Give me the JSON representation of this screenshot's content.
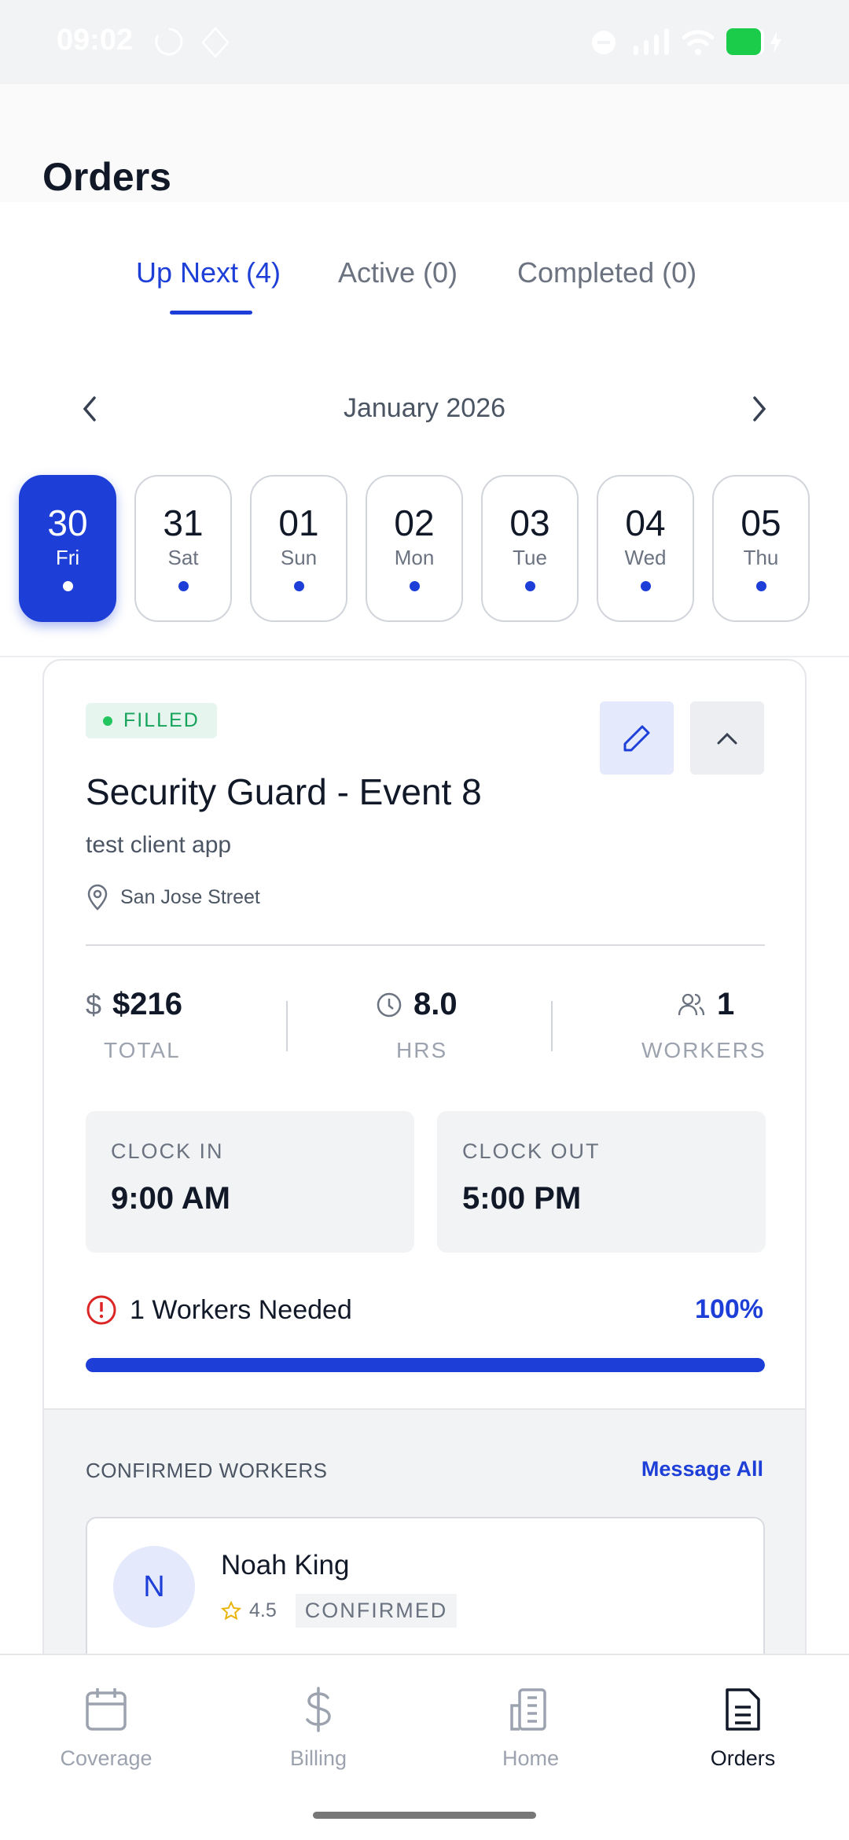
{
  "status_bar": {
    "time": "09:02",
    "battery_color": "#1bcc4b"
  },
  "header": {
    "title": "Orders"
  },
  "tabs": [
    {
      "label": "Up Next (4)",
      "active": true
    },
    {
      "label": "Active (0)"
    },
    {
      "label": "Completed (0)"
    }
  ],
  "calendar": {
    "month": "January 2026",
    "days": [
      {
        "d": "30",
        "w": "Fri",
        "selected": true
      },
      {
        "d": "31",
        "w": "Sat"
      },
      {
        "d": "01",
        "w": "Sun"
      },
      {
        "d": "02",
        "w": "Mon"
      },
      {
        "d": "03",
        "w": "Tue"
      },
      {
        "d": "04",
        "w": "Wed"
      },
      {
        "d": "05",
        "w": "Thu"
      }
    ]
  },
  "order": {
    "status": "FILLED",
    "title": "Security Guard - Event 8",
    "client": "test client app",
    "location": "San Jose Street",
    "total": "$216",
    "total_label": "TOTAL",
    "hours": "8.0",
    "hours_label": "HRS",
    "workers": "1",
    "workers_label": "WORKERS",
    "clock_in_label": "CLOCK IN",
    "clock_in": "9:00 AM",
    "clock_out_label": "CLOCK OUT",
    "clock_out": "5:00 PM",
    "needed": "1 Workers Needed",
    "fill_percent_label": "100%",
    "fill_percent": 100,
    "confirmed_label": "CONFIRMED WORKERS",
    "message_all": "Message All",
    "worker": {
      "initial": "N",
      "name": "Noah King",
      "rating": "4.5",
      "status": "CONFIRMED"
    }
  },
  "nav": [
    {
      "label": "Coverage",
      "icon": "calendar-icon"
    },
    {
      "label": "Billing",
      "icon": "dollar-icon"
    },
    {
      "label": "Home",
      "icon": "building-icon"
    },
    {
      "label": "Orders",
      "icon": "document-icon",
      "active": true
    }
  ],
  "colors": {
    "accent": "#1d3fd8",
    "success": "#16a35b",
    "danger": "#dc2626"
  }
}
